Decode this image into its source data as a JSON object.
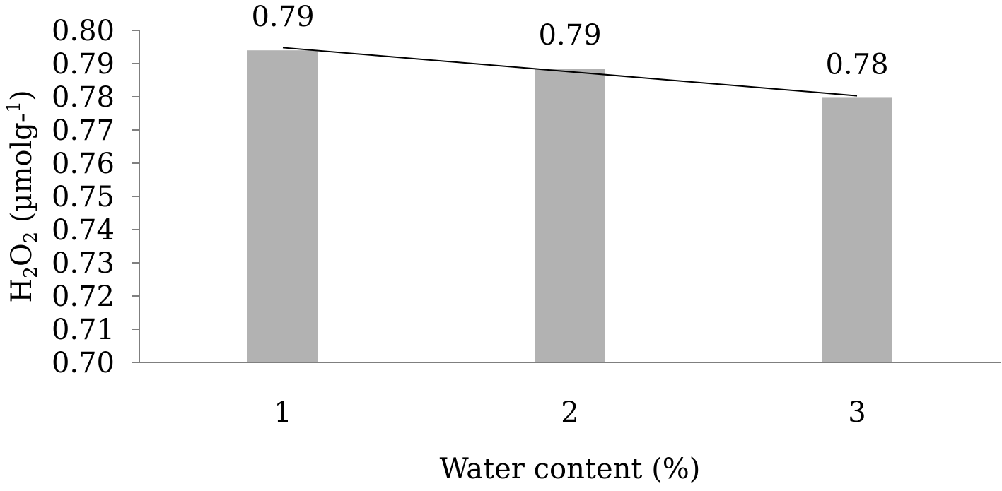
{
  "chart_data": {
    "type": "bar",
    "categories": [
      "1",
      "2",
      "3"
    ],
    "values": [
      0.794,
      0.7885,
      0.7797
    ],
    "data_labels": [
      "0.79",
      "0.79",
      "0.78"
    ],
    "trendline": {
      "type": "linear",
      "start": 0.7948,
      "end": 0.7803
    },
    "xlabel": "Water content (%)",
    "ylabel": {
      "base": "H",
      "sub1": "2",
      "mid": "O",
      "sub2": "2",
      "rest": " (µmolg-",
      "sup": "1",
      "end": ")"
    },
    "ylim": [
      0.7,
      0.8
    ],
    "yticks": [
      "0.70",
      "0.71",
      "0.72",
      "0.73",
      "0.74",
      "0.75",
      "0.76",
      "0.77",
      "0.78",
      "0.79",
      "0.80"
    ],
    "bar_color": "#b2b2b2",
    "trend_color": "#000000",
    "grid": false,
    "legend": "none"
  }
}
